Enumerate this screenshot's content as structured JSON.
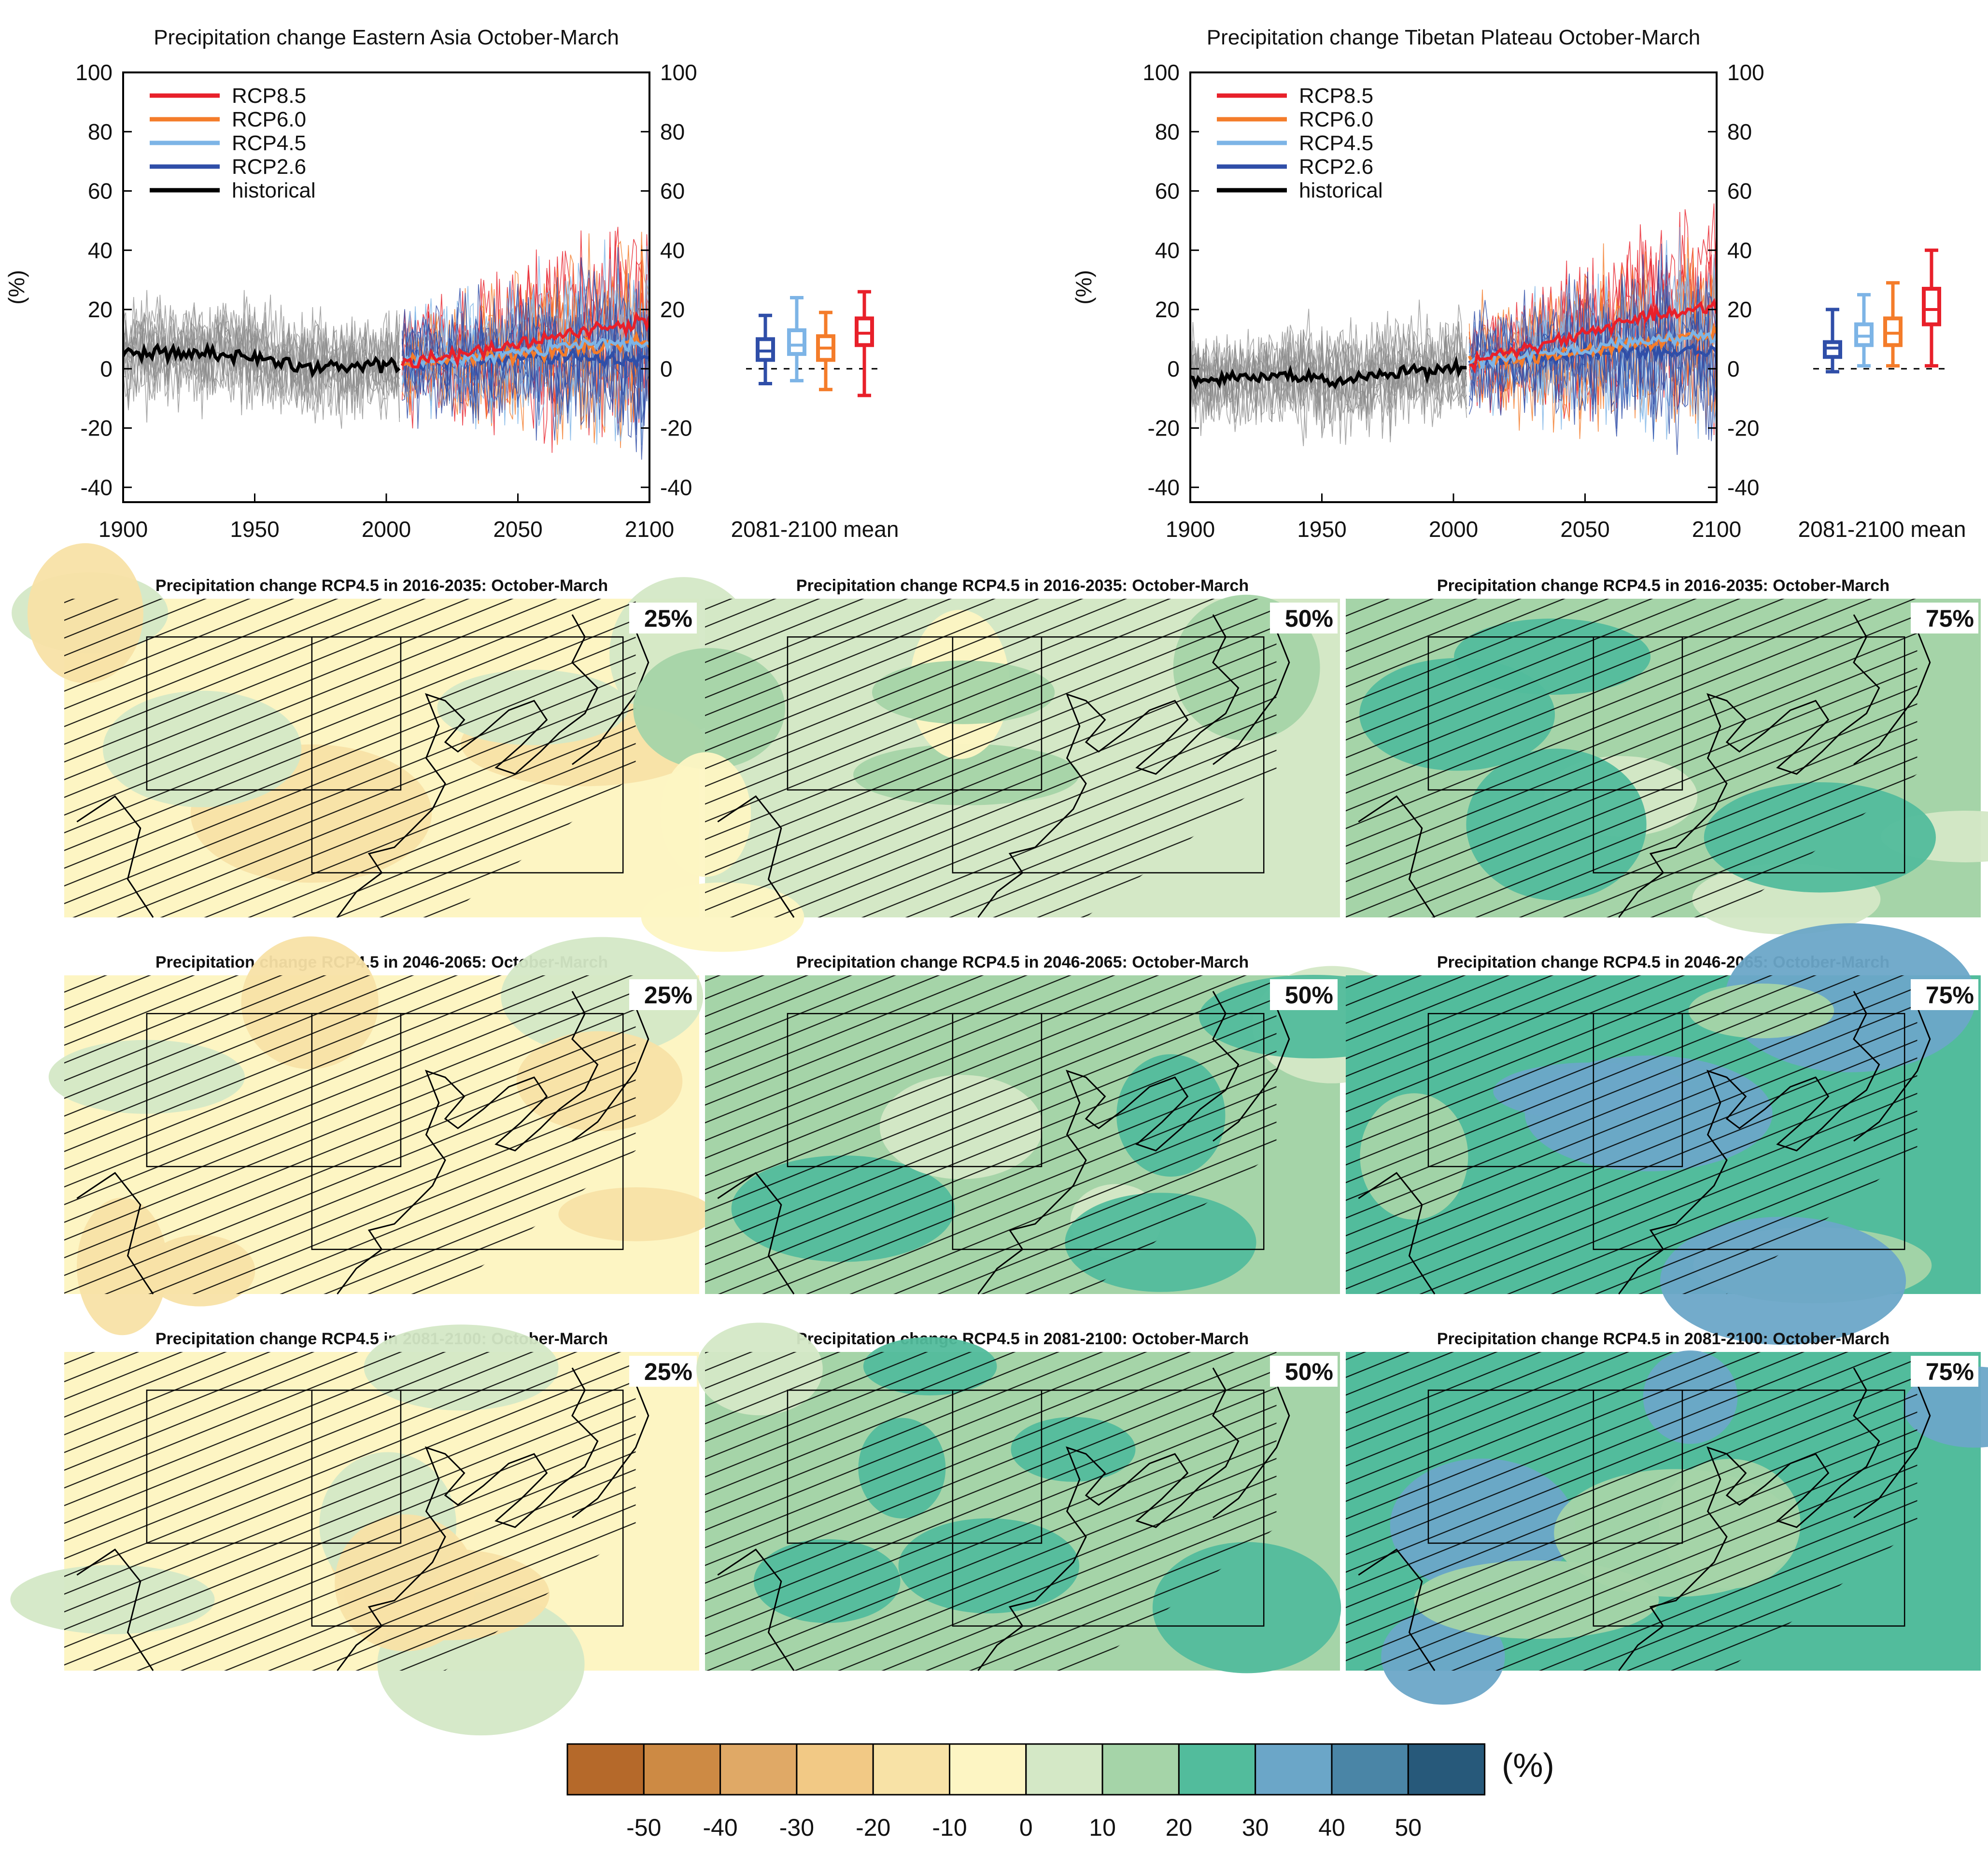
{
  "colors": {
    "RCP8.5": "#e8202a",
    "RCP6.0": "#f47c2a",
    "RCP4.5": "#7db4e6",
    "RCP2.6": "#2f4ea8",
    "historical": "#000000",
    "ensemble_hist": "#8c8c8c"
  },
  "chart_data": [
    {
      "type": "line",
      "title": "Precipitation change Eastern Asia October-March",
      "ylabel": "(%)",
      "xlim": [
        1900,
        2100
      ],
      "ylim": [
        -45,
        100
      ],
      "x_ticks": [
        "1900",
        "1950",
        "2000",
        "2050",
        "2100"
      ],
      "y_ticks": [
        "100",
        "80",
        "60",
        "40",
        "20",
        "0",
        "-20",
        "-40"
      ],
      "legend": [
        "RCP8.5",
        "RCP6.0",
        "RCP4.5",
        "RCP2.6",
        "historical"
      ],
      "legend_position": "top-left",
      "series": [
        {
          "name": "historical",
          "x": [
            1900,
            1920,
            1940,
            1960,
            1980,
            2005
          ],
          "y": [
            5,
            6,
            5,
            2,
            0,
            2
          ]
        },
        {
          "name": "RCP2.6",
          "x": [
            2006,
            2030,
            2050,
            2070,
            2100
          ],
          "y": [
            2,
            3,
            4,
            4,
            3
          ]
        },
        {
          "name": "RCP4.5",
          "x": [
            2006,
            2030,
            2050,
            2070,
            2100
          ],
          "y": [
            2,
            4,
            6,
            8,
            9
          ]
        },
        {
          "name": "RCP6.0",
          "x": [
            2006,
            2030,
            2050,
            2070,
            2100
          ],
          "y": [
            2,
            3,
            5,
            7,
            9
          ]
        },
        {
          "name": "RCP8.5",
          "x": [
            2006,
            2030,
            2050,
            2070,
            2100
          ],
          "y": [
            2,
            5,
            8,
            12,
            16
          ]
        }
      ],
      "boxplot": {
        "xlabel": "2081-2100 mean",
        "boxes": [
          {
            "name": "RCP2.6",
            "min": -5,
            "q1": 3,
            "median": 6,
            "q3": 10,
            "max": 18
          },
          {
            "name": "RCP4.5",
            "min": -4,
            "q1": 5,
            "median": 8,
            "q3": 13,
            "max": 24
          },
          {
            "name": "RCP6.0",
            "min": -7,
            "q1": 3,
            "median": 7,
            "q3": 11,
            "max": 19
          },
          {
            "name": "RCP8.5",
            "min": -9,
            "q1": 8,
            "median": 12,
            "q3": 17,
            "max": 26
          }
        ]
      }
    },
    {
      "type": "line",
      "title": "Precipitation change Tibetan Plateau October-March",
      "ylabel": "(%)",
      "xlim": [
        1900,
        2100
      ],
      "ylim": [
        -45,
        100
      ],
      "x_ticks": [
        "1900",
        "1950",
        "2000",
        "2050",
        "2100"
      ],
      "y_ticks": [
        "100",
        "80",
        "60",
        "40",
        "20",
        "0",
        "-20",
        "-40"
      ],
      "legend": [
        "RCP8.5",
        "RCP6.0",
        "RCP4.5",
        "RCP2.6",
        "historical"
      ],
      "legend_position": "top-left",
      "series": [
        {
          "name": "historical",
          "x": [
            1900,
            1920,
            1940,
            1960,
            1980,
            2005
          ],
          "y": [
            -4,
            -3,
            -2,
            -4,
            -1,
            0
          ]
        },
        {
          "name": "RCP2.6",
          "x": [
            2006,
            2030,
            2050,
            2070,
            2100
          ],
          "y": [
            2,
            4,
            5,
            6,
            6
          ]
        },
        {
          "name": "RCP4.5",
          "x": [
            2006,
            2030,
            2050,
            2070,
            2100
          ],
          "y": [
            2,
            5,
            7,
            9,
            11
          ]
        },
        {
          "name": "RCP6.0",
          "x": [
            2006,
            2030,
            2050,
            2070,
            2100
          ],
          "y": [
            2,
            4,
            6,
            9,
            12
          ]
        },
        {
          "name": "RCP8.5",
          "x": [
            2006,
            2030,
            2050,
            2070,
            2100
          ],
          "y": [
            2,
            7,
            12,
            17,
            21
          ]
        }
      ],
      "boxplot": {
        "xlabel": "2081-2100 mean",
        "boxes": [
          {
            "name": "RCP2.6",
            "min": -1,
            "q1": 4,
            "median": 7,
            "q3": 9,
            "max": 20
          },
          {
            "name": "RCP4.5",
            "min": 1,
            "q1": 8,
            "median": 11,
            "q3": 15,
            "max": 25
          },
          {
            "name": "RCP6.0",
            "min": 1,
            "q1": 8,
            "median": 12,
            "q3": 17,
            "max": 29
          },
          {
            "name": "RCP8.5",
            "min": 1,
            "q1": 15,
            "median": 20,
            "q3": 27,
            "max": 40
          }
        ]
      }
    },
    {
      "type": "heatmap",
      "maps": [
        {
          "title": "Precipitation change RCP4.5 in 2016-2035: October-March",
          "percentile": "25%",
          "dominant_level": -10
        },
        {
          "title": "Precipitation change RCP4.5 in 2016-2035: October-March",
          "percentile": "50%",
          "dominant_level": 0
        },
        {
          "title": "Precipitation change RCP4.5 in 2016-2035: October-March",
          "percentile": "75%",
          "dominant_level": 10
        },
        {
          "title": "Precipitation change RCP4.5 in 2046-2065: October-March",
          "percentile": "25%",
          "dominant_level": -10
        },
        {
          "title": "Precipitation change RCP4.5 in 2046-2065: October-March",
          "percentile": "50%",
          "dominant_level": 10
        },
        {
          "title": "Precipitation change RCP4.5 in 2046-2065: October-March",
          "percentile": "75%",
          "dominant_level": 20
        },
        {
          "title": "Precipitation change RCP4.5 in 2081-2100: October-March",
          "percentile": "25%",
          "dominant_level": -10
        },
        {
          "title": "Precipitation change RCP4.5 in 2081-2100: October-March",
          "percentile": "50%",
          "dominant_level": 10
        },
        {
          "title": "Precipitation change RCP4.5 in 2081-2100: October-March",
          "percentile": "75%",
          "dominant_level": 20
        }
      ],
      "colorbar": {
        "unit": "(%)",
        "ticks": [
          "-50",
          "-40",
          "-30",
          "-20",
          "-10",
          "0",
          "10",
          "20",
          "30",
          "40",
          "50"
        ],
        "colors": [
          "#b5692a",
          "#cd8a44",
          "#e0a966",
          "#f2c985",
          "#f8e2a6",
          "#fdf5c3",
          "#d4e8c6",
          "#a5d4a8",
          "#52bc9c",
          "#6ba6c8",
          "#4a85a6",
          "#27597a"
        ]
      }
    }
  ]
}
